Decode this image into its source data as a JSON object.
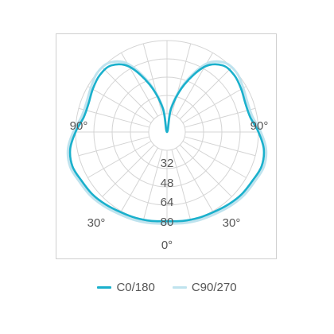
{
  "chart_data": {
    "type": "polar",
    "title": "",
    "radial_axis": {
      "max": 80,
      "rings": [
        16,
        32,
        48,
        64,
        80
      ],
      "labels": [
        "32",
        "48",
        "64",
        "80"
      ],
      "label_values": [
        32,
        48,
        64,
        80
      ]
    },
    "angle_labels": {
      "bottom": "0°",
      "lower_left": "30°",
      "lower_right": "30°",
      "left": "90°",
      "right": "90°"
    },
    "angle_label_degrees": {
      "bottom": 0,
      "lower_left": 30,
      "lower_right": 30,
      "left": 90,
      "right": 90
    },
    "angles_deg": [
      0,
      10,
      20,
      30,
      40,
      50,
      60,
      70,
      80,
      90,
      100,
      110,
      120,
      130,
      140,
      150,
      160,
      170,
      180
    ],
    "series": [
      {
        "name": "C0/180",
        "color": "#1ab0cc",
        "values": [
          78,
          79,
          80,
          81,
          83,
          85,
          86,
          88,
          86,
          80,
          74,
          73,
          75,
          77,
          76,
          66,
          44,
          21,
          0
        ]
      },
      {
        "name": "C90/270",
        "color": "#bfe3ee",
        "values": [
          80,
          81,
          82,
          83,
          85,
          87,
          88,
          90,
          88,
          82,
          76,
          75,
          77,
          80,
          79,
          69,
          46,
          22,
          0
        ]
      }
    ],
    "legend": {
      "position": "bottom",
      "items": [
        "C0/180",
        "C90/270"
      ]
    },
    "grid": true
  }
}
